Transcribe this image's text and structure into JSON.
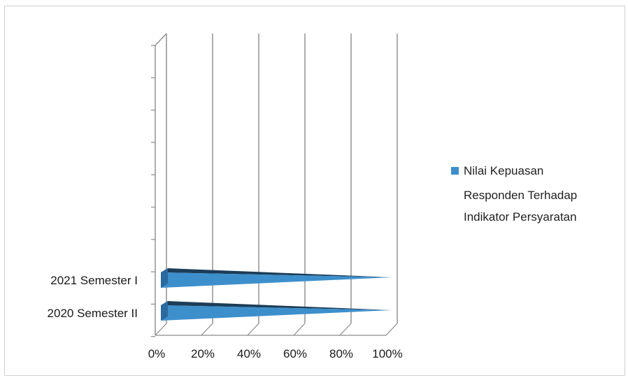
{
  "chart_data": {
    "type": "bar",
    "orientation": "horizontal",
    "style": "3d-pyramid",
    "categories": [
      "2020 Semester II",
      "2021 Semester I"
    ],
    "series": [
      {
        "name": "Nilai Kepuasan Responden Terhadap Indikator Persyaratan",
        "values": [
          1.0,
          1.0
        ],
        "color": "#3d8fcc"
      }
    ],
    "x_ticks": [
      "0%",
      "20%",
      "40%",
      "60%",
      "80%",
      "100%"
    ],
    "xlim": [
      0,
      1
    ],
    "grid": true,
    "legend_position": "right",
    "legend_lines": [
      "Nilai Kepuasan",
      "Responden Terhadap",
      "Indikator Persyaratan"
    ]
  }
}
